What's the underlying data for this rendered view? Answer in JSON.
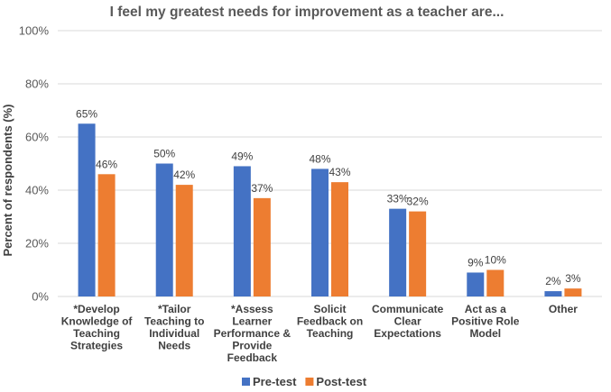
{
  "chart_data": {
    "type": "bar",
    "title": "I feel my greatest needs for improvement as a teacher are...",
    "ylabel": "Percent of respondents (%)",
    "xlabel": "",
    "ylim": [
      0,
      100
    ],
    "yticks": [
      0,
      20,
      40,
      60,
      80,
      100
    ],
    "ytick_labels": [
      "0%",
      "20%",
      "40%",
      "60%",
      "80%",
      "100%"
    ],
    "grid": true,
    "legend_position": "bottom",
    "categories": [
      [
        "*Develop",
        "Knowledge of",
        "Teaching",
        "Strategies"
      ],
      [
        "*Tailor",
        "Teaching to",
        "Individual",
        "Needs"
      ],
      [
        "*Assess",
        "Learner",
        "Performance &",
        "Provide",
        "Feedback"
      ],
      [
        "Solicit",
        "Feedback on",
        "Teaching"
      ],
      [
        "Communicate",
        "Clear",
        "Expectations"
      ],
      [
        "Act as a",
        "Positive Role",
        "Model"
      ],
      [
        "Other"
      ]
    ],
    "series": [
      {
        "name": "Pre-test",
        "color": "#4472c4",
        "values": [
          65,
          50,
          49,
          48,
          33,
          9,
          2
        ],
        "labels": [
          "65%",
          "50%",
          "49%",
          "48%",
          "33%",
          "9%",
          "2%"
        ]
      },
      {
        "name": "Post-test",
        "color": "#ed7d31",
        "values": [
          46,
          42,
          37,
          43,
          32,
          10,
          3
        ],
        "labels": [
          "46%",
          "42%",
          "37%",
          "43%",
          "32%",
          "10%",
          "3%"
        ]
      }
    ]
  }
}
